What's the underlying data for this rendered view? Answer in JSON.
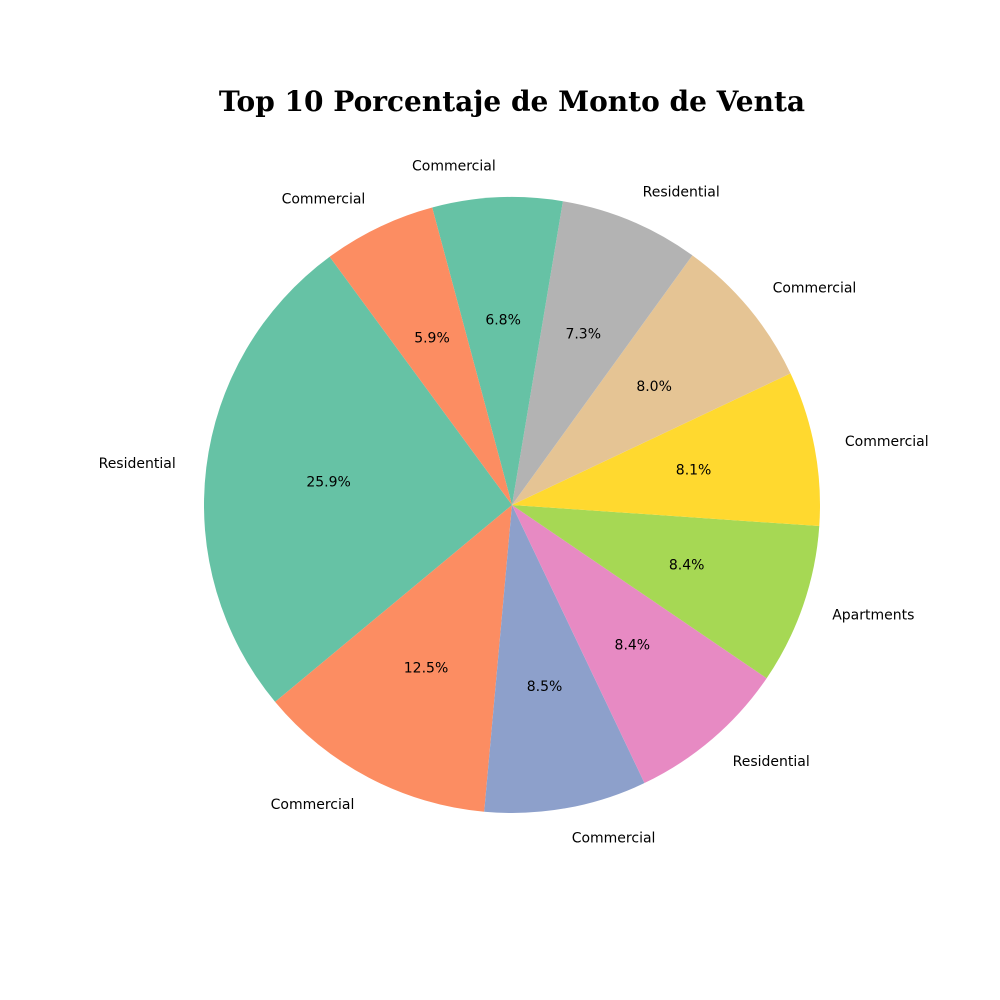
{
  "chart_data": {
    "type": "pie",
    "title": "Top 10 Porcentaje de Monto de Venta",
    "slices": [
      {
        "label": "Residential",
        "value": 25.9,
        "pct_label": "25.9%",
        "color": "#66c2a5"
      },
      {
        "label": "Commercial",
        "value": 12.5,
        "pct_label": "12.5%",
        "color": "#fc8d62"
      },
      {
        "label": "Commercial",
        "value": 8.5,
        "pct_label": "8.5%",
        "color": "#8da0cb"
      },
      {
        "label": "Residential",
        "value": 8.4,
        "pct_label": "8.4%",
        "color": "#e78ac3"
      },
      {
        "label": "Apartments",
        "value": 8.4,
        "pct_label": "8.4%",
        "color": "#a6d854"
      },
      {
        "label": "Commercial",
        "value": 8.1,
        "pct_label": "8.1%",
        "color": "#ffd92f"
      },
      {
        "label": "Commercial",
        "value": 8.0,
        "pct_label": "8.0%",
        "color": "#e5c494"
      },
      {
        "label": "Residential",
        "value": 7.3,
        "pct_label": "7.3%",
        "color": "#b3b3b3"
      },
      {
        "label": "Commercial",
        "value": 6.8,
        "pct_label": "6.8%",
        "color": "#66c2a5"
      },
      {
        "label": "Commercial",
        "value": 5.9,
        "pct_label": "5.9%",
        "color": "#fc8d62"
      }
    ],
    "start_angle_deg": 126.3,
    "direction": "counterclockwise"
  }
}
